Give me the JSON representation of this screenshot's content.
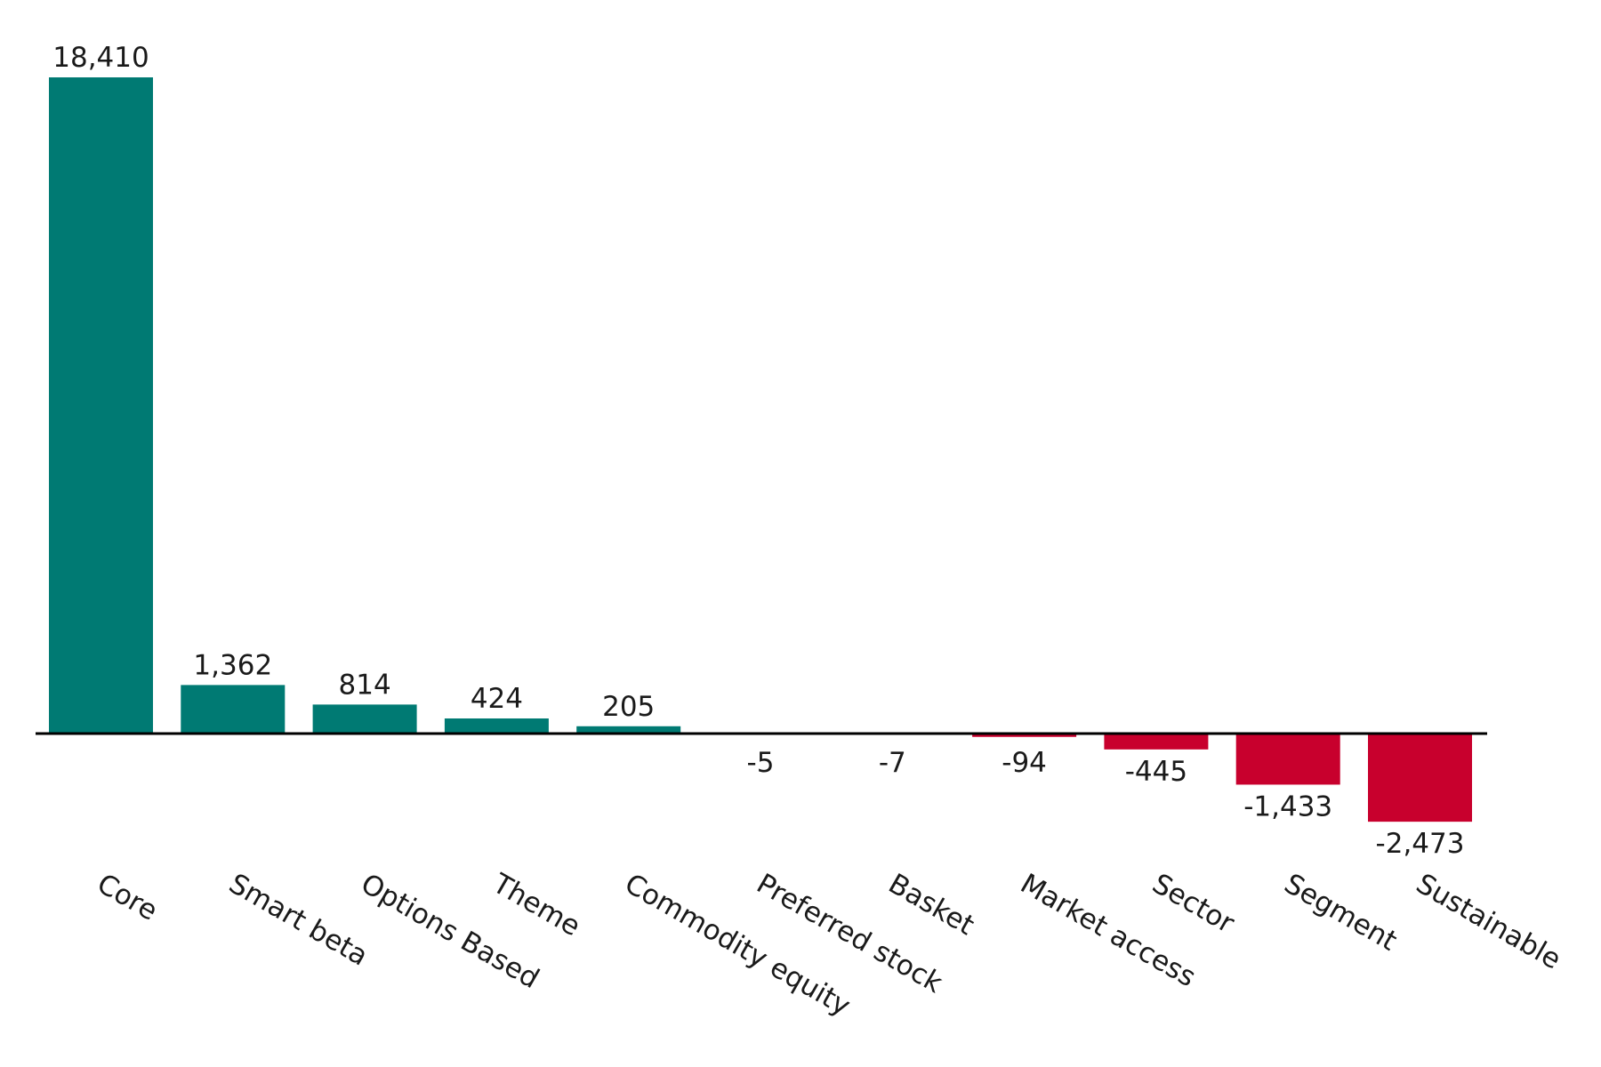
{
  "chart_data": {
    "type": "bar",
    "title": "",
    "xlabel": "",
    "ylabel": "",
    "categories": [
      "Core",
      "Smart beta",
      "Options Based",
      "Theme",
      "Commodity equity",
      "Preferred stock",
      "Basket",
      "Market access",
      "Sector",
      "Segment",
      "Sustainable"
    ],
    "values": [
      18410,
      1362,
      814,
      424,
      205,
      -5,
      -7,
      -94,
      -445,
      -1433,
      -2473
    ],
    "value_labels": [
      "18,410",
      "1,362",
      "814",
      "424",
      "205",
      "-5",
      "-7",
      "-94",
      "-445",
      "-1,433",
      "-2,473"
    ],
    "ylim": [
      -2473,
      18410
    ],
    "grid": false,
    "legend": "none",
    "colors": {
      "positive": "#007A73",
      "negative": "#C8002D",
      "near_zero": "#9a9a9a",
      "axis": "#000000"
    }
  }
}
